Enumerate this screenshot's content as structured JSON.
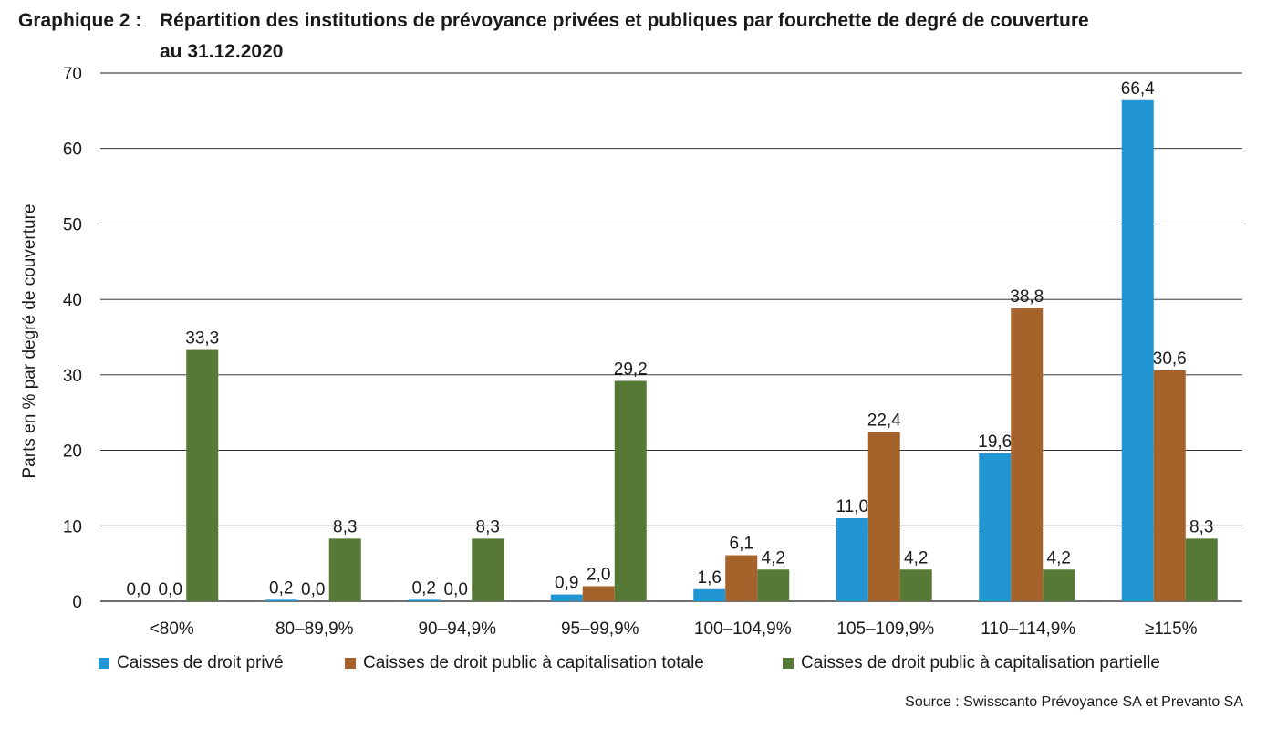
{
  "figure": {
    "label": "Graphique 2 :",
    "title": "Répartition des institutions de prévoyance privées et publiques par fourchette de degré de couverture au 31.12.2020",
    "source": "Source : Swisscanto Prévoyance SA et Prevanto SA"
  },
  "chart_data": {
    "type": "bar",
    "title": "Répartition des institutions de prévoyance privées et publiques par fourchette de degré de couverture au 31.12.2020",
    "xlabel": "",
    "ylabel": "Parts en % par degré de couverture",
    "ylim": [
      0,
      70
    ],
    "yticks": [
      0,
      10,
      20,
      30,
      40,
      50,
      60,
      70
    ],
    "grid": true,
    "legend_position": "bottom",
    "categories": [
      "<80%",
      "80–89,9%",
      "90–94,9%",
      "95–99,9%",
      "100–104,9%",
      "105–109,9%",
      "110–114,9%",
      "≥115%"
    ],
    "series": [
      {
        "name": "Caisses de droit privé",
        "color": "#2196d3",
        "values": [
          0.0,
          0.2,
          0.2,
          0.9,
          1.6,
          11.0,
          19.6,
          66.4
        ],
        "labels": [
          "0,0",
          "0,2",
          "0,2",
          "0,9",
          "1,6",
          "11,0",
          "19,6",
          "66,4"
        ]
      },
      {
        "name": "Caisses de droit public à capitalisation totale",
        "color": "#a5632b",
        "values": [
          0.0,
          0.0,
          0.0,
          2.0,
          6.1,
          22.4,
          38.8,
          30.6
        ],
        "labels": [
          "0,0",
          "0,0",
          "0,0",
          "2,0",
          "6,1",
          "22,4",
          "38,8",
          "30,6"
        ]
      },
      {
        "name": "Caisses de droit public à capitalisation partielle",
        "color": "#567a35",
        "values": [
          33.3,
          8.3,
          8.3,
          29.2,
          4.2,
          4.2,
          4.2,
          8.3
        ],
        "labels": [
          "33,3",
          "8,3",
          "8,3",
          "29,2",
          "4,2",
          "4,2",
          "4,2",
          "8,3"
        ]
      }
    ]
  }
}
